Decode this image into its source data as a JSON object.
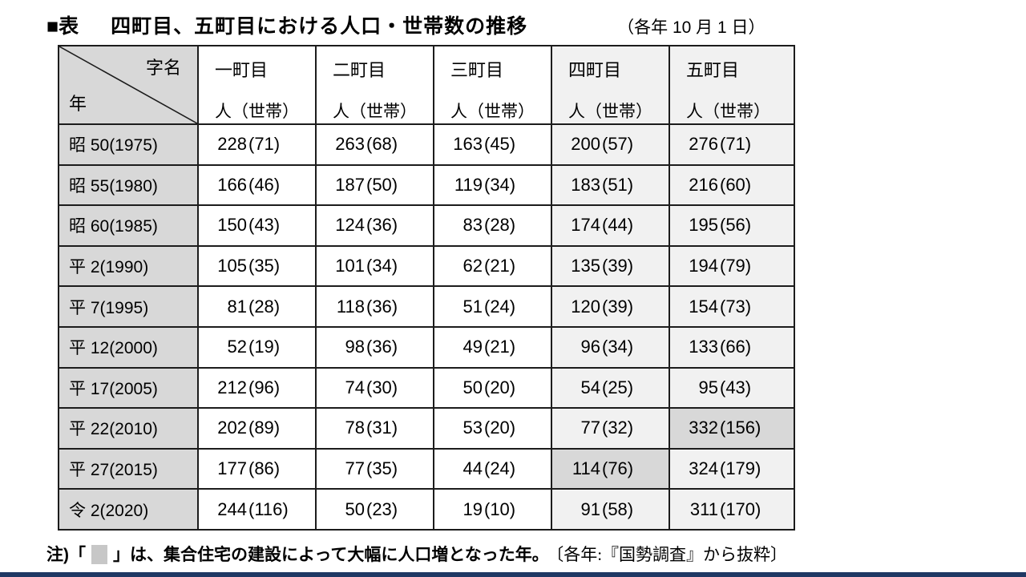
{
  "title": {
    "label": "■表",
    "text": "四町目、五町目における人口・世帯数の推移",
    "date_note": "（各年 10 月 1 日）"
  },
  "table": {
    "corner": {
      "top_right": "字名",
      "bottom_left": "年"
    },
    "columns": [
      {
        "name": "一町目",
        "unit": "人（世帯）",
        "shaded": false
      },
      {
        "name": "二町目",
        "unit": "人（世帯）",
        "shaded": false
      },
      {
        "name": "三町目",
        "unit": "人（世帯）",
        "shaded": false
      },
      {
        "name": "四町目",
        "unit": "人（世帯）",
        "shaded": true
      },
      {
        "name": "五町目",
        "unit": "人（世帯）",
        "shaded": true
      }
    ],
    "rows": [
      {
        "year": "昭 50(1975)",
        "values": [
          [
            "228",
            "71"
          ],
          [
            "263",
            "68"
          ],
          [
            "163",
            "45"
          ],
          [
            "200",
            "57"
          ],
          [
            "276",
            "71"
          ]
        ]
      },
      {
        "year": "昭 55(1980)",
        "values": [
          [
            "166",
            "46"
          ],
          [
            "187",
            "50"
          ],
          [
            "119",
            "34"
          ],
          [
            "183",
            "51"
          ],
          [
            "216",
            "60"
          ]
        ]
      },
      {
        "year": "昭 60(1985)",
        "values": [
          [
            "150",
            "43"
          ],
          [
            "124",
            "36"
          ],
          [
            "83",
            "28"
          ],
          [
            "174",
            "44"
          ],
          [
            "195",
            "56"
          ]
        ]
      },
      {
        "year": "平 2(1990)",
        "values": [
          [
            "105",
            "35"
          ],
          [
            "101",
            "34"
          ],
          [
            "62",
            "21"
          ],
          [
            "135",
            "39"
          ],
          [
            "194",
            "79"
          ]
        ]
      },
      {
        "year": "平 7(1995)",
        "values": [
          [
            "81",
            "28"
          ],
          [
            "118",
            "36"
          ],
          [
            "51",
            "24"
          ],
          [
            "120",
            "39"
          ],
          [
            "154",
            "73"
          ]
        ]
      },
      {
        "year": "平 12(2000)",
        "values": [
          [
            "52",
            "19"
          ],
          [
            "98",
            "36"
          ],
          [
            "49",
            "21"
          ],
          [
            "96",
            "34"
          ],
          [
            "133",
            "66"
          ]
        ]
      },
      {
        "year": "平 17(2005)",
        "values": [
          [
            "212",
            "96"
          ],
          [
            "74",
            "30"
          ],
          [
            "50",
            "20"
          ],
          [
            "54",
            "25"
          ],
          [
            "95",
            "43"
          ]
        ]
      },
      {
        "year": "平 22(2010)",
        "values": [
          [
            "202",
            "89"
          ],
          [
            "78",
            "31"
          ],
          [
            "53",
            "20"
          ],
          [
            "77",
            "32"
          ],
          [
            "332",
            "156"
          ]
        ]
      },
      {
        "year": "平 27(2015)",
        "values": [
          [
            "177",
            "86"
          ],
          [
            "77",
            "35"
          ],
          [
            "44",
            "24"
          ],
          [
            "114",
            "76"
          ],
          [
            "324",
            "179"
          ]
        ]
      },
      {
        "year": "令 2(2020)",
        "values": [
          [
            "244",
            "116"
          ],
          [
            "50",
            "23"
          ],
          [
            "19",
            "10"
          ],
          [
            "91",
            "58"
          ],
          [
            "311",
            "170"
          ]
        ]
      }
    ],
    "highlight_cells": [
      {
        "row": 7,
        "col": 4
      },
      {
        "row": 8,
        "col": 3
      }
    ]
  },
  "note": {
    "prefix": "注)「",
    "suffix": "」は、集合住宅の建設によって大幅に人口増となった年。",
    "source": "〔各年:『国勢調査』から抜粋〕"
  },
  "colors": {
    "row_header_bg": "#d8d8d8",
    "shaded_column_bg": "#f1f1f1",
    "highlight_cell_bg": "#d8d8d8",
    "note_swatch": "#c7c7c7",
    "bottom_bar": "#1f3864",
    "table_border": "#1c1c1c"
  }
}
